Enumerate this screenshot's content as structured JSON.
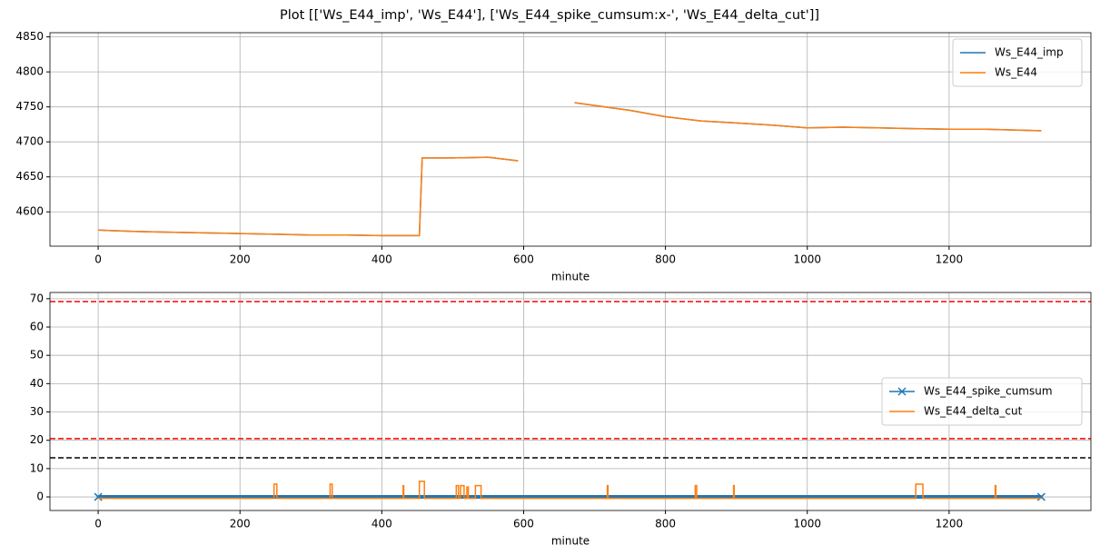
{
  "title": "Plot [['Ws_E44_imp', 'Ws_E44'], ['Ws_E44_spike_cumsum:x-', 'Ws_E44_delta_cut']]",
  "chart_data": [
    {
      "type": "line",
      "xlabel": "minute",
      "xlim": [
        -68,
        1400
      ],
      "ylim": [
        4551,
        4856
      ],
      "xticks": [
        0,
        200,
        400,
        600,
        800,
        1000,
        1200
      ],
      "yticks": [
        4600,
        4650,
        4700,
        4750,
        4800,
        4850
      ],
      "grid": true,
      "legend": "upper right",
      "series": [
        {
          "name": "Ws_E44_imp",
          "color": "#1f77b4",
          "x": [
            0,
            50,
            100,
            150,
            200,
            250,
            300,
            350,
            400,
            453,
            457,
            500,
            550,
            592,
            630,
            672,
            700,
            750,
            800,
            850,
            900,
            950,
            1000,
            1050,
            1100,
            1150,
            1200,
            1250,
            1330
          ],
          "values": [
            4574,
            4572,
            4571,
            4570,
            4569,
            4568,
            4567,
            4567,
            4566,
            4566,
            4677,
            4677,
            4678,
            4673,
            null,
            4756,
            4752,
            4745,
            4736,
            4730,
            4727,
            4724,
            4720,
            4721,
            4720,
            4719,
            4718,
            4718,
            4716
          ]
        },
        {
          "name": "Ws_E44",
          "color": "#ff7f0e",
          "x": [
            0,
            50,
            100,
            150,
            200,
            250,
            300,
            350,
            400,
            453,
            457,
            500,
            550,
            592,
            630,
            672,
            700,
            750,
            800,
            850,
            900,
            950,
            1000,
            1050,
            1100,
            1150,
            1200,
            1250,
            1330
          ],
          "values": [
            4574,
            4572,
            4571,
            4570,
            4569,
            4568,
            4567,
            4567,
            4566,
            4566,
            4677,
            4677,
            4678,
            4673,
            null,
            4756,
            4752,
            4745,
            4736,
            4730,
            4727,
            4724,
            4720,
            4721,
            4720,
            4719,
            4718,
            4718,
            4716
          ]
        }
      ]
    },
    {
      "type": "line",
      "xlabel": "minute",
      "xlim": [
        -68,
        1400
      ],
      "ylim": [
        -4.8,
        72.2
      ],
      "xticks": [
        0,
        200,
        400,
        600,
        800,
        1000,
        1200
      ],
      "yticks": [
        0,
        10,
        20,
        30,
        40,
        50,
        60,
        70
      ],
      "grid": true,
      "legend": "center right",
      "hlines": [
        {
          "value": 69,
          "color": "#ff0000"
        },
        {
          "value": 20.6,
          "color": "#ff0000"
        },
        {
          "value": 13.8,
          "color": "#000000"
        }
      ],
      "series": [
        {
          "name": "Ws_E44_spike_cumsum",
          "color": "#1f77b4",
          "marker": "x",
          "x": [
            0,
            1330
          ],
          "values": [
            0,
            0
          ]
        },
        {
          "name": "Ws_E44_delta_cut",
          "color": "#ff7f0e",
          "x": [
            0,
            248,
            248,
            252,
            252,
            327,
            327,
            330,
            330,
            430,
            430,
            431,
            431,
            453,
            453,
            460,
            460,
            505,
            505,
            508,
            508,
            511,
            511,
            516,
            516,
            520,
            520,
            522,
            522,
            532,
            532,
            540,
            540,
            718,
            718,
            719,
            719,
            842,
            842,
            844,
            844,
            896,
            896,
            897,
            897,
            1153,
            1153,
            1163,
            1163,
            1265,
            1265,
            1266,
            1266,
            1330
          ],
          "values": [
            -0.5,
            -0.5,
            4.5,
            4.5,
            -0.5,
            -0.5,
            4.5,
            4.5,
            -0.5,
            -0.5,
            4,
            4,
            -0.5,
            -0.5,
            5.5,
            5.5,
            -0.5,
            -0.5,
            4,
            4,
            -0.5,
            -0.5,
            4,
            4,
            -0.5,
            -0.5,
            3.5,
            3.5,
            -0.5,
            -0.5,
            4,
            4,
            -0.5,
            -0.5,
            4,
            4,
            -0.5,
            -0.5,
            4,
            4,
            -0.5,
            -0.5,
            4,
            4,
            -0.5,
            -0.5,
            4.5,
            4.5,
            -0.5,
            -0.5,
            4,
            4,
            -0.5,
            -0.5
          ]
        }
      ]
    }
  ]
}
